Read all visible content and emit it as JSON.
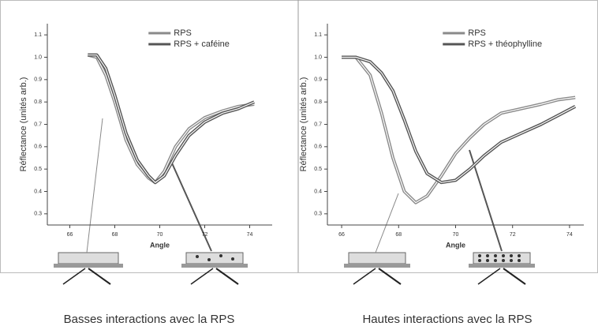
{
  "chart_data": [
    {
      "type": "line",
      "xlabel": "Angle",
      "ylabel": "Réflectance (unités arb.)",
      "caption": "Basses interactions avec la RPS",
      "legend": "top",
      "x": [
        66.8,
        67.2,
        67.6,
        68,
        68.5,
        69,
        69.5,
        69.8,
        70.2,
        70.7,
        71.3,
        72,
        72.8,
        73.5,
        74.2
      ],
      "series": [
        {
          "name": "RPS",
          "color": "#8a8a8a",
          "values": [
            1.01,
            1.0,
            0.92,
            0.8,
            0.63,
            0.52,
            0.46,
            0.44,
            0.49,
            0.6,
            0.68,
            0.73,
            0.76,
            0.78,
            0.79
          ]
        },
        {
          "name": "RPS + caféine",
          "color": "#555555",
          "values": [
            1.01,
            1.01,
            0.95,
            0.83,
            0.66,
            0.54,
            0.47,
            0.44,
            0.47,
            0.56,
            0.65,
            0.71,
            0.75,
            0.77,
            0.8
          ]
        }
      ],
      "xlim": [
        65,
        75
      ],
      "xticks": [
        66,
        68,
        70,
        72,
        74
      ],
      "ylim": [
        0.25,
        1.15
      ],
      "yticks": [
        0.3,
        0.4,
        0.5,
        0.6,
        0.7,
        0.8,
        0.9,
        {
          "value": 1,
          "label": "1.0"
        },
        1.1
      ]
    },
    {
      "type": "line",
      "xlabel": "Angle",
      "ylabel": "Réflectance (unités arb.)",
      "caption": "Hautes interactions avec la RPS",
      "legend": "top",
      "x": [
        66,
        66.5,
        67,
        67.4,
        67.8,
        68.2,
        68.6,
        69,
        69.5,
        70,
        70.5,
        71,
        71.6,
        72.3,
        73,
        73.6,
        74.2
      ],
      "series": [
        {
          "name": "RPS",
          "color": "#8a8a8a",
          "values": [
            1.0,
            1.0,
            0.92,
            0.75,
            0.55,
            0.4,
            0.35,
            0.38,
            0.47,
            0.57,
            0.64,
            0.7,
            0.75,
            0.77,
            0.79,
            0.81,
            0.82
          ]
        },
        {
          "name": "RPS + théophylline",
          "color": "#555555",
          "values": [
            1.0,
            1.0,
            0.98,
            0.93,
            0.85,
            0.72,
            0.58,
            0.48,
            0.44,
            0.45,
            0.5,
            0.56,
            0.62,
            0.66,
            0.7,
            0.74,
            0.78
          ]
        }
      ],
      "xlim": [
        65.5,
        74.5
      ],
      "xticks": [
        66,
        68,
        70,
        72,
        74
      ],
      "ylim": [
        0.25,
        1.15
      ],
      "yticks": [
        0.3,
        0.4,
        0.5,
        0.6,
        0.7,
        0.8,
        0.9,
        {
          "value": 1,
          "label": "1.0"
        },
        1.1
      ]
    }
  ]
}
